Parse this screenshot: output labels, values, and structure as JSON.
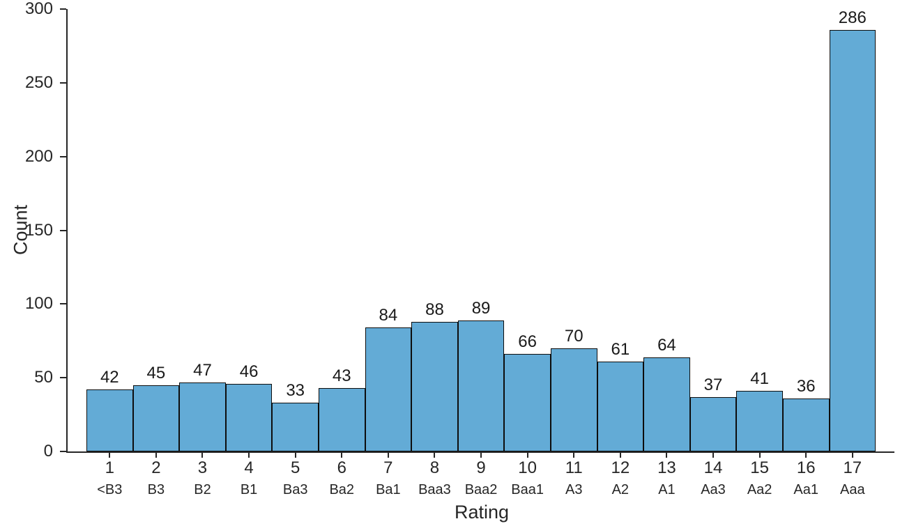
{
  "chart_data": {
    "type": "bar",
    "style": "histogram",
    "categories": [
      "1",
      "2",
      "3",
      "4",
      "5",
      "6",
      "7",
      "8",
      "9",
      "10",
      "11",
      "12",
      "13",
      "14",
      "15",
      "16",
      "17"
    ],
    "category_sublabels": [
      "<B3",
      "B3",
      "B2",
      "B1",
      "Ba3",
      "Ba2",
      "Ba1",
      "Baa3",
      "Baa2",
      "Baa1",
      "A3",
      "A2",
      "A1",
      "Aa3",
      "Aa2",
      "Aa1",
      "Aaa"
    ],
    "values": [
      42,
      45,
      47,
      46,
      33,
      43,
      84,
      88,
      89,
      66,
      70,
      61,
      64,
      37,
      41,
      36,
      286
    ],
    "xlabel": "Rating",
    "ylabel": "Count",
    "ylim": [
      0,
      300
    ],
    "yticks": [
      0,
      50,
      100,
      150,
      200,
      250,
      300
    ],
    "bar_color": "#63abd6",
    "bar_edge_color": "#0d0d0d",
    "grid": false,
    "legend": null,
    "data_labels": true
  }
}
